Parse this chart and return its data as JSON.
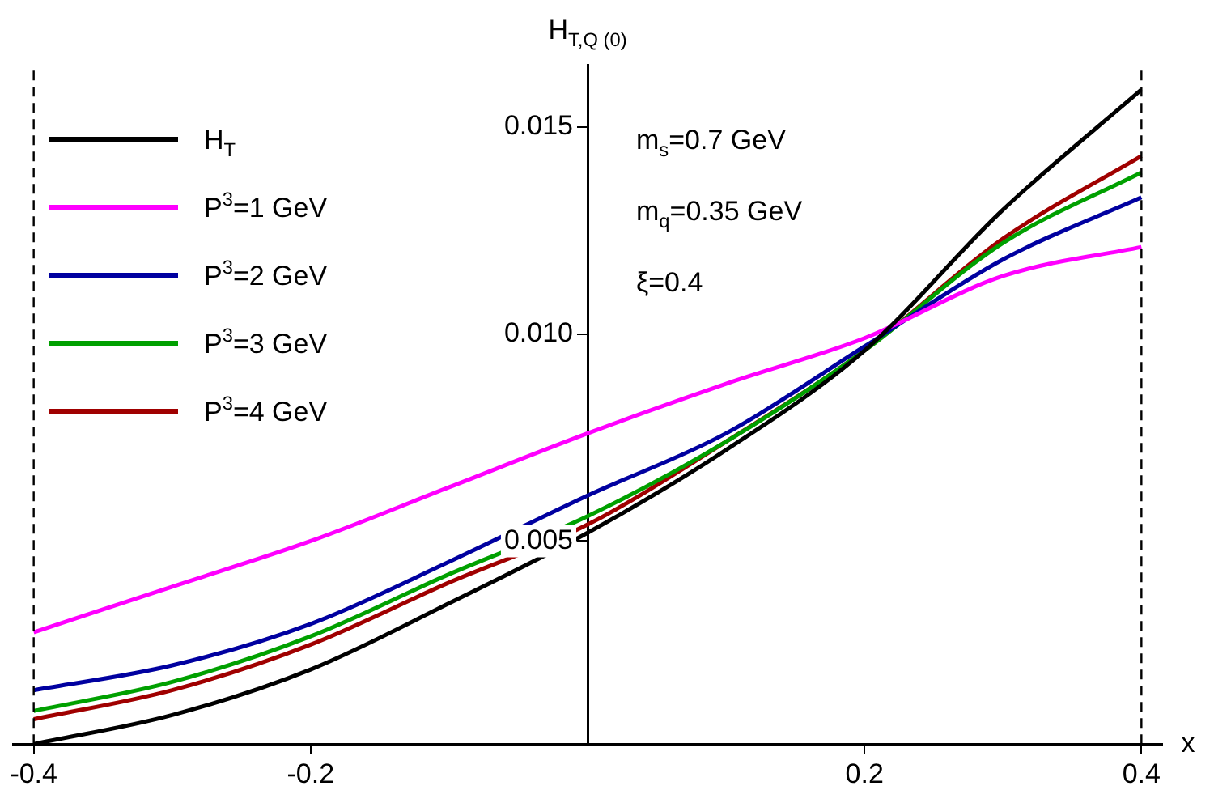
{
  "chart_data": {
    "type": "line",
    "xlabel": "x",
    "ylabel": "H$_{T,Q (0)}$",
    "x": [
      -0.4,
      -0.3,
      -0.2,
      -0.1,
      0,
      0.1,
      0.2,
      0.3,
      0.4
    ],
    "series": [
      {
        "name": "H$_{T}$",
        "color": "#000000",
        "values": [
          0.0001,
          0.0008,
          0.0019,
          0.0035,
          0.0052,
          0.0072,
          0.0096,
          0.013,
          0.0159
        ]
      },
      {
        "name": "P$^{3}$=1 GeV",
        "color": "#ff00ff",
        "values": [
          0.0028,
          0.0039,
          0.005,
          0.0063,
          0.0076,
          0.0088,
          0.0099,
          0.0114,
          0.0121
        ]
      },
      {
        "name": "P$^{3}$=2 GeV",
        "color": "#0000a0",
        "values": [
          0.0014,
          0.002,
          0.003,
          0.0045,
          0.0061,
          0.0076,
          0.0097,
          0.0118,
          0.0133
        ]
      },
      {
        "name": "P$^{3}$=3 GeV",
        "color": "#00a000",
        "values": [
          0.0009,
          0.0016,
          0.0027,
          0.0042,
          0.0056,
          0.0074,
          0.0096,
          0.0122,
          0.0139
        ]
      },
      {
        "name": "P$^{3}$=4 GeV",
        "color": "#a00000",
        "values": [
          0.0007,
          0.0014,
          0.0025,
          0.004,
          0.0054,
          0.0074,
          0.0096,
          0.0123,
          0.0143
        ]
      }
    ],
    "xlim": [
      -0.415,
      0.415
    ],
    "xticks": [
      -0.4,
      -0.2,
      0.2,
      0.4
    ],
    "ylim": [
      0.0001,
      0.0165
    ],
    "yticks": [
      0.005,
      {
        "value": 0.01,
        "label": "0.010"
      },
      0.015
    ],
    "ref_lines": [
      {
        "axis": "x",
        "value": -0.4,
        "color": "#000000",
        "line_style": "dashed"
      },
      {
        "axis": "x",
        "value": 0.4,
        "color": "#000000",
        "line_style": "dashed"
      }
    ],
    "annotations": [
      "m$_{s}$=0.7 GeV",
      "m$_{q}$=0.35 GeV",
      "ξ=0.4"
    ],
    "legend": "top left",
    "grid": false,
    "marker": "none",
    "line_style": "solid"
  }
}
